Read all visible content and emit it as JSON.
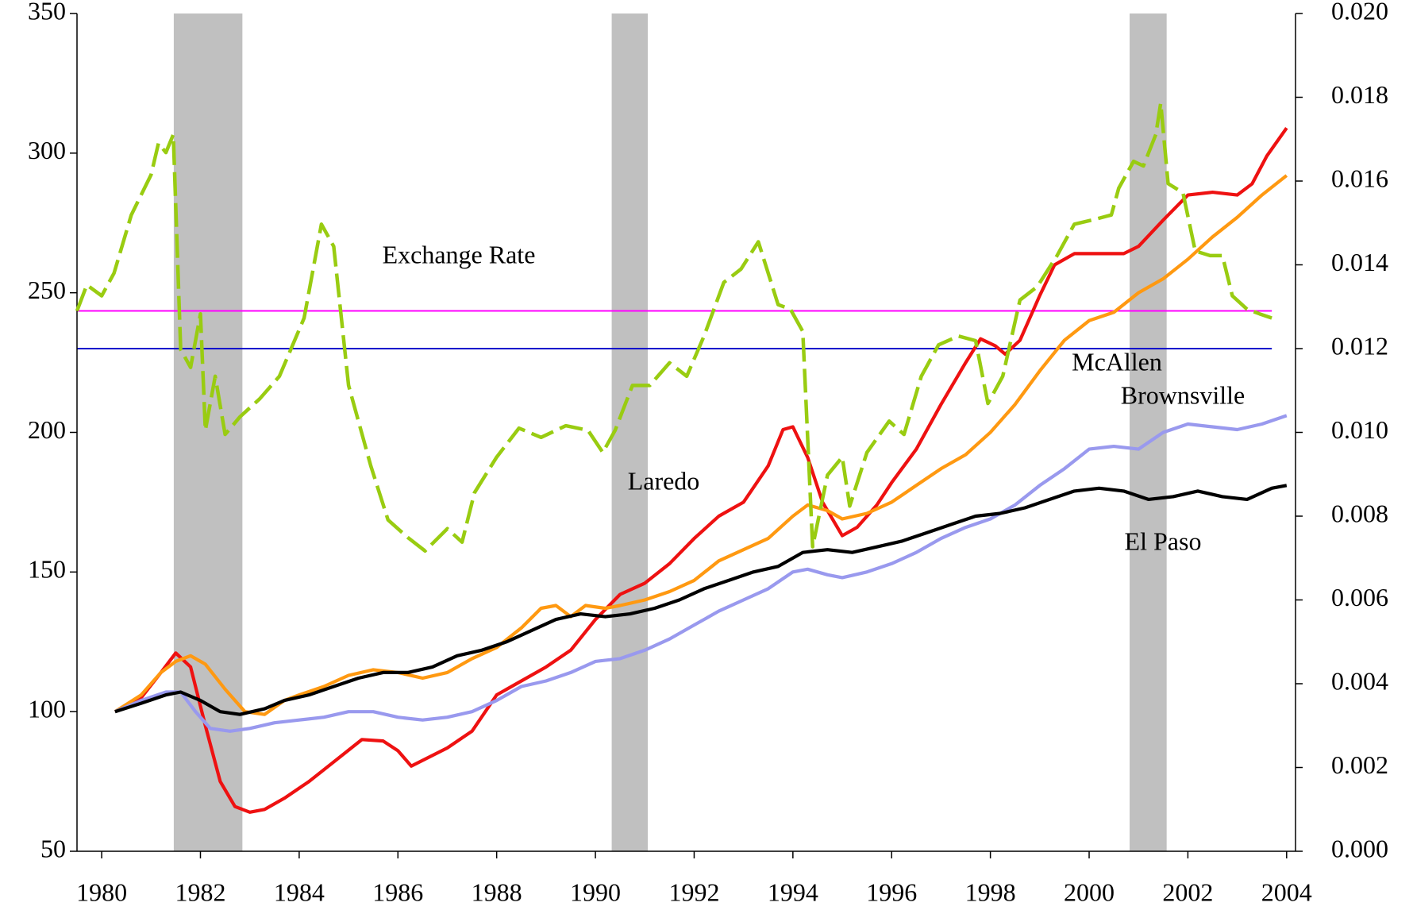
{
  "chart_data": {
    "type": "line",
    "xlim": [
      1979.5,
      2004.18
    ],
    "xticks": [
      1980,
      1982,
      1984,
      1986,
      1988,
      1990,
      1992,
      1994,
      1996,
      1998,
      2000,
      2002,
      2004
    ],
    "ylim": [
      50,
      350
    ],
    "yticks": [
      50,
      100,
      150,
      200,
      250,
      300,
      350
    ],
    "y2lim": [
      0,
      0.02
    ],
    "y2ticks": [
      {
        "value": 0,
        "label": "0.000"
      },
      {
        "value": 0.002,
        "label": "0.002"
      },
      {
        "value": 0.004,
        "label": "0.004"
      },
      {
        "value": 0.006,
        "label": "0.006"
      },
      {
        "value": 0.008,
        "label": "0.008"
      },
      {
        "value": 0.01,
        "label": "0.010"
      },
      {
        "value": 0.012,
        "label": "0.012"
      },
      {
        "value": 0.014,
        "label": "0.014"
      },
      {
        "value": 0.016,
        "label": "0.016"
      },
      {
        "value": 0.018,
        "label": "0.018"
      },
      {
        "value": 0.02,
        "label": "0.020"
      }
    ],
    "shaded_regions": [
      [
        1981.46,
        1982.85
      ],
      [
        1990.33,
        1991.06
      ],
      [
        2000.82,
        2001.57
      ]
    ],
    "shaded_color": "#c0c0c0",
    "reference_lines": [
      {
        "value": 0.0129,
        "color": "#ff00ff",
        "axis": "y2",
        "x": [
          1979.5,
          2003.7
        ]
      },
      {
        "value": 0.012,
        "color": "#0000cc",
        "axis": "y2",
        "x": [
          1979.5,
          2003.7
        ]
      }
    ],
    "series": [
      {
        "name": "Laredo",
        "color": "#ee1111",
        "x": [
          1980.27,
          1980.8,
          1981.2,
          1981.5,
          1981.8,
          1982.1,
          1982.4,
          1982.7,
          1983.0,
          1983.3,
          1983.7,
          1984.2,
          1984.7,
          1985.27,
          1985.7,
          1986.0,
          1986.27,
          1987.0,
          1987.5,
          1988.0,
          1988.5,
          1989.0,
          1989.5,
          1990.0,
          1990.5,
          1991.0,
          1991.5,
          1992.0,
          1992.5,
          1993.0,
          1993.5,
          1993.8,
          1994.0,
          1994.3,
          1994.6,
          1995.0,
          1995.3,
          1995.7,
          1996.0,
          1996.5,
          1997.0,
          1997.5,
          1997.8,
          1998.1,
          1998.3,
          1998.6,
          1999.0,
          1999.3,
          1999.7,
          2000.2,
          2000.7,
          2001.0,
          2001.5,
          2002.0,
          2002.5,
          2003.0,
          2003.3,
          2003.6,
          2004.0
        ],
        "values": [
          100,
          105,
          114,
          121,
          116,
          95,
          75,
          66,
          64,
          65,
          69,
          75,
          82,
          90,
          89.5,
          86,
          80.5,
          87,
          93,
          106,
          111,
          116,
          122,
          133,
          142,
          146,
          153,
          162,
          170,
          175,
          188,
          201,
          202,
          191,
          175,
          163,
          166,
          174,
          182,
          194,
          210,
          225,
          233.5,
          231,
          228,
          233,
          249,
          260,
          264,
          264,
          264,
          266.6,
          276,
          285,
          286,
          285,
          289,
          299,
          309
        ]
      },
      {
        "name": "McAllen",
        "color": "#ff9911",
        "x": [
          1980.27,
          1980.8,
          1981.2,
          1981.5,
          1981.8,
          1982.1,
          1982.5,
          1982.9,
          1983.3,
          1983.7,
          1984.0,
          1984.5,
          1985.0,
          1985.5,
          1986.0,
          1986.5,
          1987.0,
          1987.5,
          1988.0,
          1988.5,
          1988.9,
          1989.2,
          1989.5,
          1989.8,
          1990.2,
          1990.5,
          1991.0,
          1991.5,
          1992.0,
          1992.5,
          1993.0,
          1993.5,
          1994.0,
          1994.3,
          1994.7,
          1995.0,
          1995.5,
          1996.0,
          1996.5,
          1997.0,
          1997.5,
          1998.0,
          1998.5,
          1999.0,
          1999.5,
          2000.0,
          2000.5,
          2001.0,
          2001.5,
          2002.0,
          2002.5,
          2003.0,
          2003.5,
          2004.0
        ],
        "values": [
          100,
          106,
          114,
          118,
          120,
          117,
          108,
          100,
          99,
          104,
          106,
          109,
          113,
          115,
          114,
          112,
          114,
          119,
          123,
          130,
          137,
          138,
          134,
          138,
          137,
          138,
          140,
          143,
          147,
          154,
          158,
          162,
          170,
          174,
          172,
          169,
          171,
          175,
          181,
          187,
          192,
          200,
          210,
          222,
          233,
          240,
          243,
          250,
          255,
          262,
          270,
          277,
          285,
          292
        ]
      },
      {
        "name": "Brownsville",
        "color": "#9999ee",
        "x": [
          1980.27,
          1980.8,
          1981.3,
          1981.6,
          1981.9,
          1982.2,
          1982.6,
          1983.0,
          1983.5,
          1984.0,
          1984.5,
          1985.0,
          1985.5,
          1986.0,
          1986.5,
          1987.0,
          1987.5,
          1988.0,
          1988.5,
          1989.0,
          1989.5,
          1990.0,
          1990.5,
          1991.0,
          1991.5,
          1992.0,
          1992.5,
          1993.0,
          1993.5,
          1994.0,
          1994.3,
          1994.7,
          1995.0,
          1995.5,
          1996.0,
          1996.5,
          1997.0,
          1997.5,
          1998.0,
          1998.5,
          1999.0,
          1999.5,
          2000.0,
          2000.5,
          2001.0,
          2001.5,
          2002.0,
          2002.5,
          2003.0,
          2003.5,
          2004.0
        ],
        "values": [
          100,
          104,
          107,
          107,
          100,
          94,
          93,
          94,
          96,
          97,
          98,
          100,
          100,
          98,
          97,
          98,
          100,
          104,
          109,
          111,
          114,
          118,
          119,
          122,
          126,
          131,
          136,
          140,
          144,
          150,
          151,
          149,
          148,
          150,
          153,
          157,
          162,
          166,
          169,
          174,
          181,
          187,
          194,
          195,
          194,
          200,
          203,
          202,
          201,
          203,
          206
        ]
      },
      {
        "name": "El Paso",
        "color": "#000000",
        "x": [
          1980.27,
          1980.8,
          1981.3,
          1981.6,
          1982.0,
          1982.4,
          1982.8,
          1983.3,
          1983.7,
          1984.2,
          1984.7,
          1985.2,
          1985.7,
          1986.2,
          1986.7,
          1987.2,
          1987.7,
          1988.2,
          1988.7,
          1989.2,
          1989.7,
          1990.2,
          1990.7,
          1991.2,
          1991.7,
          1992.2,
          1992.7,
          1993.2,
          1993.7,
          1994.2,
          1994.7,
          1995.2,
          1995.7,
          1996.2,
          1996.7,
          1997.2,
          1997.7,
          1998.2,
          1998.7,
          1999.2,
          1999.7,
          2000.2,
          2000.7,
          2001.2,
          2001.7,
          2002.2,
          2002.7,
          2003.2,
          2003.7,
          2004.0
        ],
        "values": [
          100,
          103,
          106,
          107,
          104,
          100,
          99,
          101,
          104,
          106,
          109,
          112,
          114,
          114,
          116,
          120,
          122,
          125,
          129,
          133,
          135,
          134,
          135,
          137,
          140,
          144,
          147,
          150,
          152,
          157,
          158,
          157,
          159,
          161,
          164,
          167,
          170,
          171,
          173,
          176,
          179,
          180,
          179,
          176,
          177,
          179,
          177,
          176,
          180,
          181
        ]
      },
      {
        "name": "Exchange Rate",
        "color": "#99cc11",
        "axis": "y2",
        "dashed": true,
        "x": [
          1979.5,
          1979.7,
          1980.0,
          1980.25,
          1980.6,
          1981.0,
          1981.15,
          1981.3,
          1981.45,
          1981.6,
          1981.8,
          1982.0,
          1982.1,
          1982.3,
          1982.5,
          1982.8,
          1983.2,
          1983.6,
          1984.1,
          1984.45,
          1984.7,
          1985.0,
          1985.45,
          1985.8,
          1986.2,
          1986.55,
          1987.0,
          1987.3,
          1987.55,
          1988.0,
          1988.45,
          1988.9,
          1989.4,
          1989.85,
          1990.15,
          1990.4,
          1990.75,
          1991.1,
          1991.5,
          1991.85,
          1992.2,
          1992.6,
          1992.95,
          1993.3,
          1993.7,
          1993.95,
          1994.2,
          1994.4,
          1994.7,
          1995.0,
          1995.15,
          1995.5,
          1995.95,
          1996.25,
          1996.6,
          1996.95,
          1997.35,
          1997.7,
          1997.95,
          1998.25,
          1998.6,
          1998.95,
          1999.35,
          1999.7,
          2000.1,
          2000.45,
          2000.6,
          2000.9,
          2001.1,
          2001.35,
          2001.45,
          2001.6,
          2001.9,
          2002.15,
          2002.45,
          2002.7,
          2002.9,
          2003.2,
          2003.45,
          2003.7
        ],
        "values": [
          0.0129,
          0.01352,
          0.01326,
          0.0138,
          0.01519,
          0.01615,
          0.0169,
          0.01668,
          0.01711,
          0.01198,
          0.01155,
          0.01283,
          0.01005,
          0.01134,
          0.00995,
          0.01037,
          0.0108,
          0.01134,
          0.01273,
          0.01497,
          0.01444,
          0.01112,
          0.0092,
          0.00791,
          0.00749,
          0.00717,
          0.0077,
          0.00738,
          0.00856,
          0.00941,
          0.0101,
          0.00988,
          0.01016,
          0.01005,
          0.00952,
          0.01005,
          0.01112,
          0.01112,
          0.01166,
          0.01134,
          0.0123,
          0.01358,
          0.0139,
          0.01455,
          0.01305,
          0.01294,
          0.01241,
          0.00727,
          0.00898,
          0.00941,
          0.00824,
          0.00952,
          0.01027,
          0.00995,
          0.01134,
          0.01209,
          0.0123,
          0.01219,
          0.01069,
          0.01134,
          0.01316,
          0.01348,
          0.01422,
          0.01497,
          0.01508,
          0.01519,
          0.01583,
          0.01647,
          0.01636,
          0.01711,
          0.01786,
          0.01594,
          0.01572,
          0.01433,
          0.01422,
          0.01422,
          0.01326,
          0.01294,
          0.01283,
          0.01273
        ]
      }
    ]
  }
}
